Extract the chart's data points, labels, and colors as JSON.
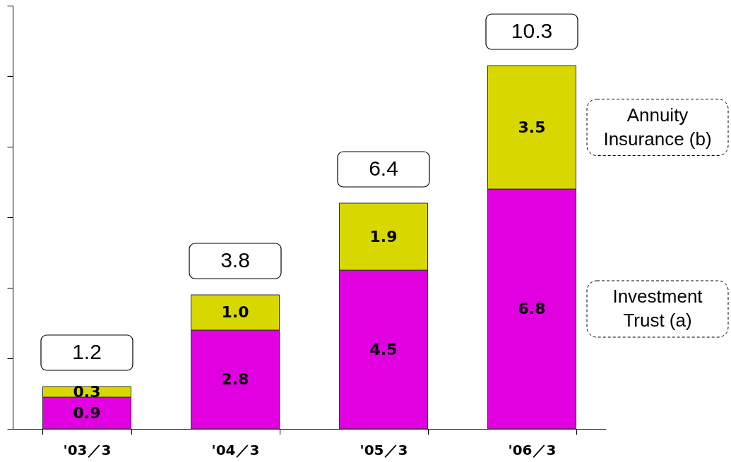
{
  "chart_data": {
    "type": "bar",
    "stacked": true,
    "categories": [
      "'03／3",
      "'04／3",
      "'05／3",
      "'06／3"
    ],
    "series": [
      {
        "name": "Investment Trust (a)",
        "color": "#e000e0",
        "values": [
          0.9,
          2.8,
          4.5,
          6.8
        ],
        "value_labels": [
          "0.9",
          "2.8",
          "4.5",
          "6.8"
        ]
      },
      {
        "name": "Annuity Insurance (b)",
        "color": "#d8d800",
        "values": [
          0.3,
          1.0,
          1.9,
          3.5
        ],
        "value_labels": [
          "0.3",
          "1.0",
          "1.9",
          "3.5"
        ]
      }
    ],
    "totals": [
      "1.2",
      "3.8",
      "6.4",
      "10.3"
    ],
    "ylim": [
      0,
      12
    ],
    "yticks": [
      0,
      2,
      4,
      6,
      8,
      10,
      12
    ],
    "tick_labels": "x",
    "grid": false,
    "legend": false
  }
}
